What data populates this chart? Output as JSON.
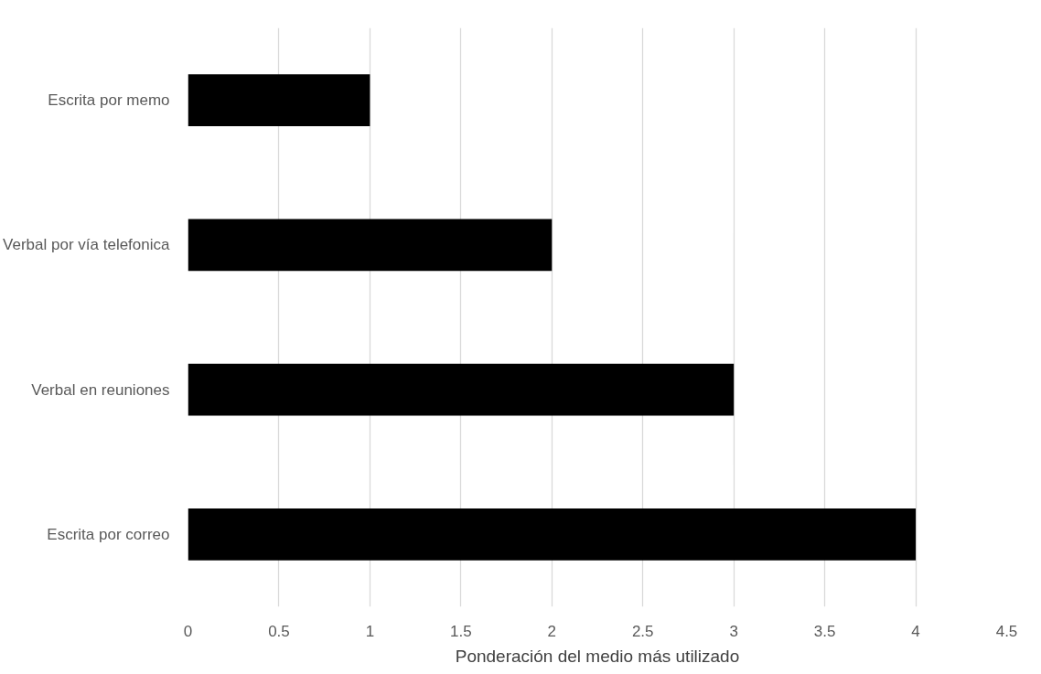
{
  "chart_data": {
    "type": "bar",
    "orientation": "horizontal",
    "xlabel": "Ponderación del medio más utilizado",
    "categories": [
      "Escrita por memo",
      "Verbal por vía telefonica",
      "Verbal en reuniones",
      "Escrita por correo"
    ],
    "values": [
      1,
      2,
      3,
      4
    ],
    "color": "#000000",
    "xlim": [
      0,
      4.5
    ],
    "xticks": [
      0,
      0.5,
      1,
      1.5,
      2,
      2.5,
      3,
      3.5,
      4,
      4.5
    ],
    "grid": "x"
  }
}
